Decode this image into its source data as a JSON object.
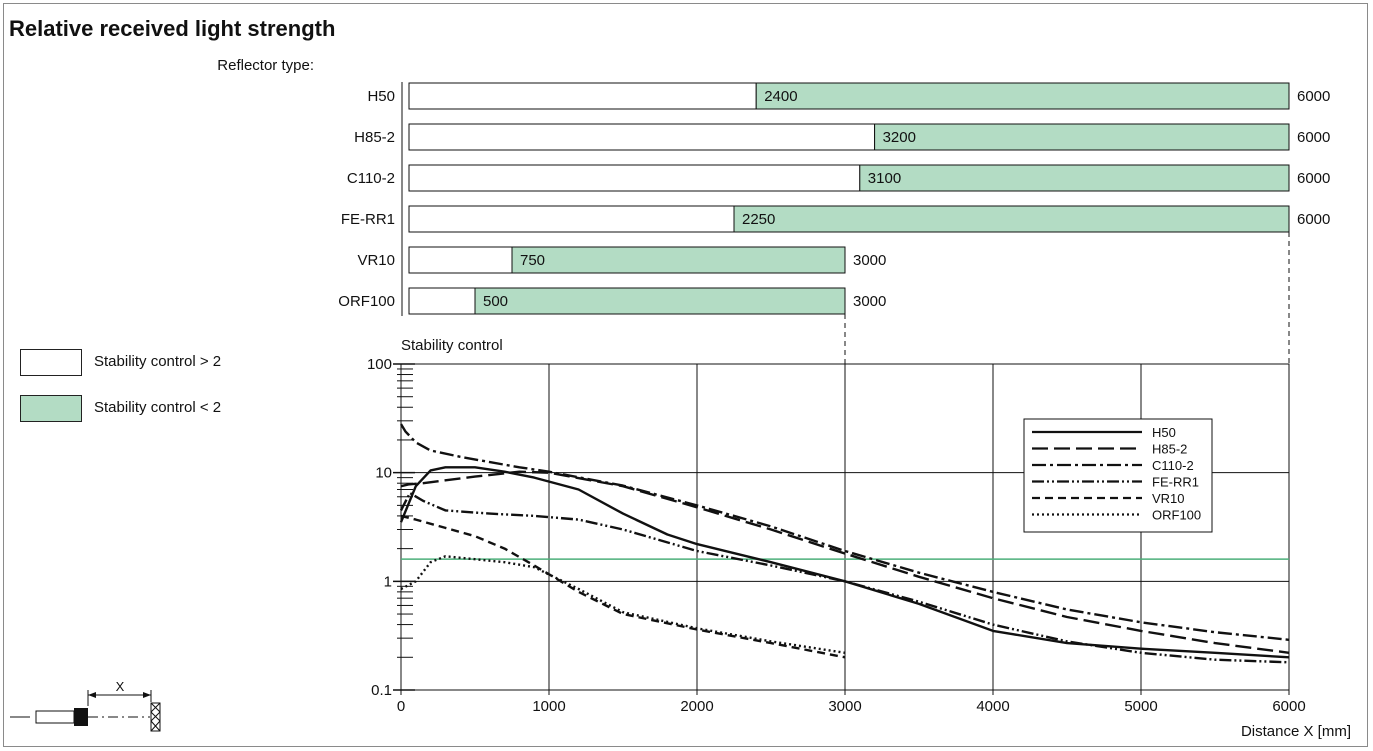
{
  "title": "Relative received light strength",
  "reflector_type_label": "Reflector type:",
  "legend": {
    "above_label": "Stability control > 2",
    "below_label": "Stability control < 2",
    "green_color": "#b3dcc4",
    "threshold_line_color": "#4caf7a"
  },
  "chart_data": [
    {
      "type": "bar",
      "description_visible": "Reflector range bars",
      "categories": [
        "H50",
        "H85-2",
        "C110-2",
        "FE-RR1",
        "VR10",
        "ORF100"
      ],
      "series": [
        {
          "name": "Stability control > 2",
          "start": [
            0,
            0,
            0,
            0,
            0,
            0
          ],
          "end": [
            2400,
            3200,
            3100,
            2250,
            750,
            500
          ]
        },
        {
          "name": "Stability control < 2",
          "start": [
            2400,
            3200,
            3100,
            2250,
            750,
            500
          ],
          "end": [
            6000,
            6000,
            6000,
            6000,
            3000,
            3000
          ]
        }
      ],
      "split_labels": [
        "2400",
        "3200",
        "3100",
        "2250",
        "750",
        "500"
      ],
      "end_labels": [
        "6000",
        "6000",
        "6000",
        "6000",
        "3000",
        "3000"
      ]
    },
    {
      "type": "line",
      "title": "Stability control",
      "xlabel": "Distance X [mm]",
      "ylabel": "",
      "xlim": [
        0,
        6000
      ],
      "ylim": [
        0.1,
        100
      ],
      "y_scale": "log",
      "x_ticks": [
        "0",
        "1000",
        "2000",
        "3000",
        "4000",
        "5000",
        "6000"
      ],
      "y_ticks": [
        "100",
        "10",
        "1",
        "0.1"
      ],
      "threshold": 1.6,
      "grid": true,
      "legend_position": "top-right",
      "series": [
        {
          "name": "H50",
          "dash": "solid",
          "x": [
            0,
            100,
            200,
            300,
            500,
            700,
            900,
            1200,
            1500,
            1800,
            2000,
            2500,
            3000,
            3500,
            4000,
            4500,
            5000,
            5500,
            6000
          ],
          "y": [
            3.5,
            7.5,
            10.5,
            11.2,
            11.2,
            10.2,
            9.0,
            7.0,
            4.2,
            2.7,
            2.2,
            1.5,
            1.0,
            0.62,
            0.35,
            0.27,
            0.24,
            0.22,
            0.2
          ]
        },
        {
          "name": "H85-2",
          "dash": "long-dash",
          "x": [
            0,
            50,
            150,
            300,
            500,
            800,
            1000,
            1500,
            2000,
            2500,
            3000,
            3500,
            4000,
            4500,
            5000,
            5500,
            6000
          ],
          "y": [
            7.5,
            7.8,
            8.0,
            8.5,
            9.2,
            10.2,
            10.0,
            7.5,
            4.8,
            3.0,
            1.8,
            1.1,
            0.7,
            0.47,
            0.35,
            0.27,
            0.22
          ]
        },
        {
          "name": "C110-2",
          "dash": "dash-dot",
          "x": [
            0,
            30,
            100,
            200,
            400,
            600,
            800,
            1000,
            1500,
            2000,
            2500,
            3000,
            3500,
            4000,
            4500,
            5000,
            5500,
            6000
          ],
          "y": [
            28,
            24,
            19,
            16,
            14,
            12.5,
            11.2,
            10.2,
            7.6,
            5.0,
            3.2,
            1.9,
            1.2,
            0.8,
            0.55,
            0.42,
            0.34,
            0.29
          ]
        },
        {
          "name": "FE-RR1",
          "dash": "dash-dot-dot",
          "x": [
            0,
            60,
            150,
            300,
            600,
            900,
            1200,
            1500,
            2000,
            2500,
            3000,
            3500,
            4000,
            4500,
            5000,
            5500,
            6000
          ],
          "y": [
            4.5,
            6.5,
            5.5,
            4.5,
            4.2,
            4.0,
            3.7,
            3.0,
            1.9,
            1.4,
            1.0,
            0.65,
            0.4,
            0.28,
            0.22,
            0.19,
            0.18
          ]
        },
        {
          "name": "VR10",
          "dash": "dash",
          "x": [
            0,
            100,
            300,
            500,
            700,
            900,
            1200,
            1500,
            2000,
            2500,
            3000
          ],
          "y": [
            4.0,
            3.7,
            3.1,
            2.6,
            2.0,
            1.4,
            0.8,
            0.5,
            0.36,
            0.27,
            0.2
          ]
        },
        {
          "name": "ORF100",
          "dash": "dotted",
          "x": [
            0,
            100,
            200,
            300,
            500,
            700,
            900,
            1200,
            1500,
            2000,
            2500,
            3000
          ],
          "y": [
            0.85,
            1.0,
            1.5,
            1.7,
            1.6,
            1.5,
            1.35,
            0.85,
            0.52,
            0.37,
            0.28,
            0.22
          ]
        }
      ]
    }
  ]
}
